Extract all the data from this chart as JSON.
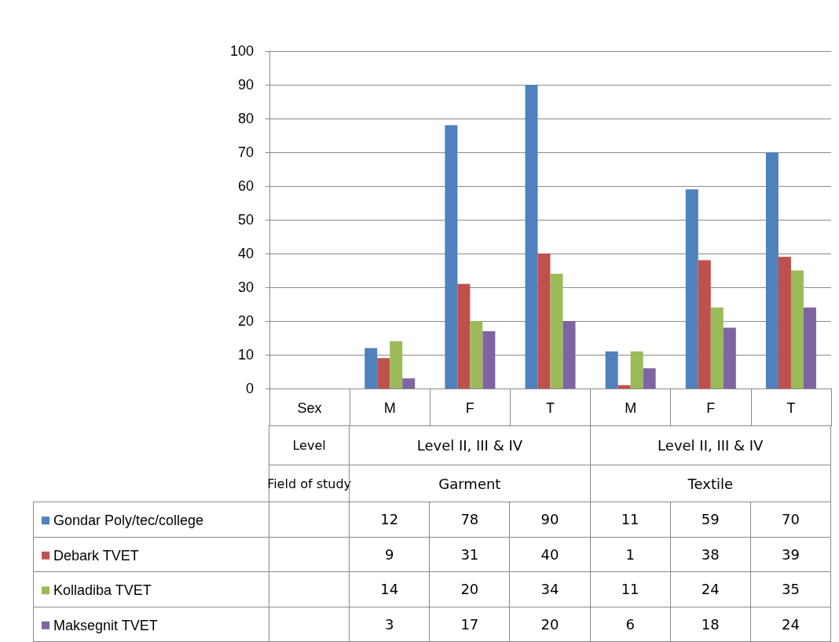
{
  "chart_data": {
    "type": "bar",
    "categories": [
      "Sex",
      "M",
      "F",
      "T",
      "M",
      "F",
      "T"
    ],
    "series": [
      {
        "name": "Gondar Poly/tec/college",
        "color": "#4f81bd",
        "values": [
          null,
          12,
          78,
          90,
          11,
          59,
          70
        ]
      },
      {
        "name": "Debark TVET",
        "color": "#c0504d",
        "values": [
          null,
          9,
          31,
          40,
          1,
          38,
          39
        ]
      },
      {
        "name": "Kolladiba TVET",
        "color": "#9bbb59",
        "values": [
          null,
          14,
          20,
          34,
          11,
          24,
          35
        ]
      },
      {
        "name": "Maksegnit TVET",
        "color": "#8064a2",
        "values": [
          null,
          3,
          17,
          20,
          6,
          18,
          24
        ]
      }
    ],
    "annotations": [
      "Level",
      "Level II, III & IV",
      "Level II, III & IV",
      "Field of study",
      "Garment",
      "Textile"
    ],
    "ylim": [
      0,
      100
    ],
    "yticks": [
      0,
      10,
      20,
      30,
      40,
      50,
      60,
      70,
      80,
      90,
      100
    ],
    "grid": "y",
    "legend": "bottom",
    "data_labels": true
  }
}
